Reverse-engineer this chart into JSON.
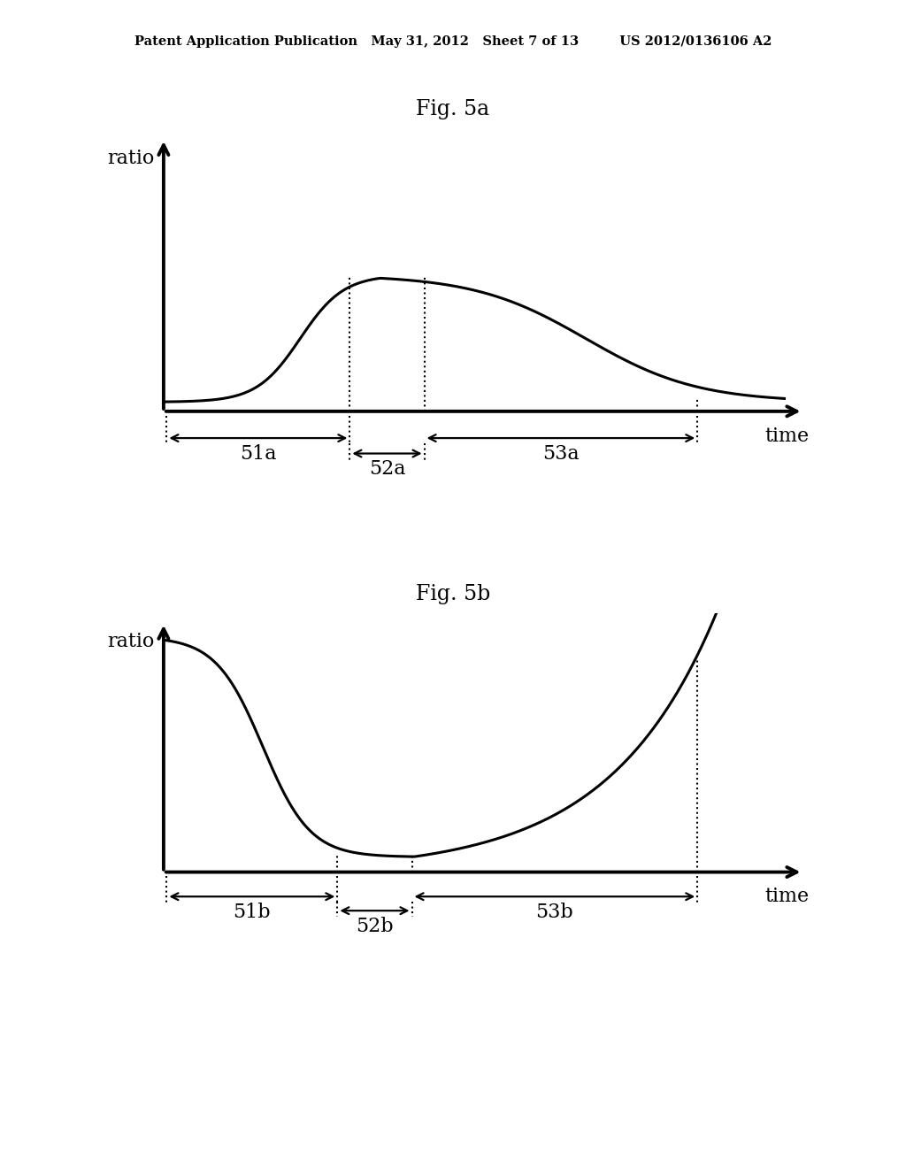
{
  "background_color": "#ffffff",
  "header_text": "Patent Application Publication   May 31, 2012   Sheet 7 of 13         US 2012/0136106 A2",
  "header_fontsize": 10.5,
  "fig5a_title": "Fig. 5a",
  "fig5b_title": "Fig. 5b",
  "title_fontsize": 17,
  "axis_label_fontsize": 16,
  "annotation_fontsize": 16,
  "curve_color": "#000000",
  "curve_linewidth": 2.2,
  "axis_linewidth": 2.8,
  "dotted_linewidth": 1.5,
  "arrow_linewidth": 1.6
}
